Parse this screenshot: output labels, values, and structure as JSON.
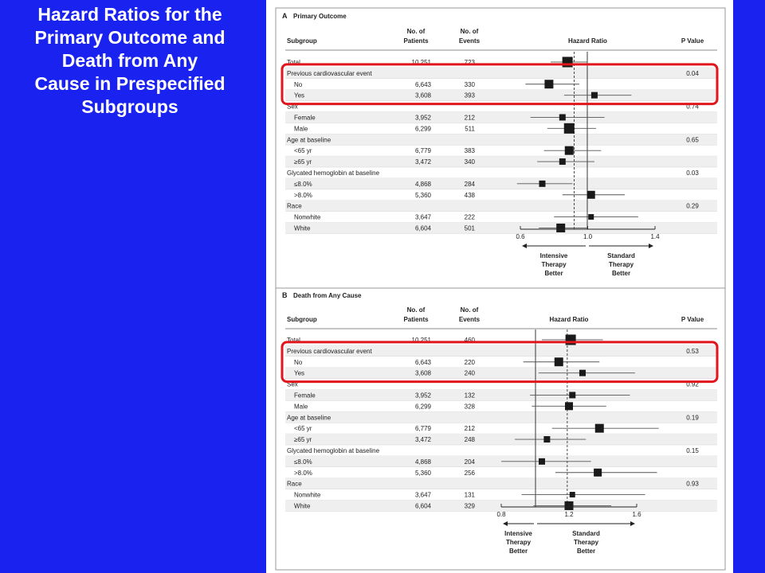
{
  "slide": {
    "title_lines": [
      "Hazard Ratios for the",
      "Primary Outcome and",
      "Death from Any",
      "Cause in Prespecified",
      "Subgroups"
    ]
  },
  "colors": {
    "background": "#1a22f0",
    "highlight_box": "#e0161c",
    "marker": "#1a1a1a",
    "row_shade": "#efefef"
  },
  "chart_data": [
    {
      "type": "forest",
      "panel_label": "A",
      "title": "Primary Outcome",
      "columns": {
        "subgroup": "Subgroup",
        "patients": "No. of Patients",
        "events": "No. of Events",
        "hr": "Hazard Ratio",
        "p": "P Value"
      },
      "xlim": [
        0.6,
        1.4
      ],
      "ticks": [
        "0.6",
        "1.0",
        "1.4"
      ],
      "dashed_reference": 0.92,
      "left_label": [
        "Intensive",
        "Therapy",
        "Better"
      ],
      "right_label": [
        "Standard",
        "Therapy",
        "Better"
      ],
      "highlight_group": "Previous cardiovascular event",
      "rows": [
        {
          "label": "Total",
          "indent": false,
          "patients": "10,251",
          "events": "723",
          "hr": 0.88,
          "lo": 0.78,
          "hi": 1.0,
          "size": 13
        },
        {
          "label": "Previous cardiovascular event",
          "indent": false,
          "p": "0.04"
        },
        {
          "label": "No",
          "indent": true,
          "patients": "6,643",
          "events": "330",
          "hr": 0.77,
          "lo": 0.63,
          "hi": 0.95,
          "size": 11
        },
        {
          "label": "Yes",
          "indent": true,
          "patients": "3,608",
          "events": "393",
          "hr": 1.04,
          "lo": 0.86,
          "hi": 1.26,
          "size": 8
        },
        {
          "label": "Sex",
          "indent": false,
          "p": "0.74"
        },
        {
          "label": "Female",
          "indent": true,
          "patients": "3,952",
          "events": "212",
          "hr": 0.85,
          "lo": 0.66,
          "hi": 1.1,
          "size": 8
        },
        {
          "label": "Male",
          "indent": true,
          "patients": "6,299",
          "events": "511",
          "hr": 0.89,
          "lo": 0.76,
          "hi": 1.05,
          "size": 13
        },
        {
          "label": "Age at baseline",
          "indent": false,
          "p": "0.65"
        },
        {
          "label": "<65 yr",
          "indent": true,
          "patients": "6,779",
          "events": "383",
          "hr": 0.89,
          "lo": 0.74,
          "hi": 1.08,
          "size": 11
        },
        {
          "label": "≥65 yr",
          "indent": true,
          "patients": "3,472",
          "events": "340",
          "hr": 0.85,
          "lo": 0.7,
          "hi": 1.04,
          "size": 8
        },
        {
          "label": "Glycated hemoglobin at baseline",
          "indent": false,
          "p": "0.03"
        },
        {
          "label": "≤8.0%",
          "indent": true,
          "patients": "4,868",
          "events": "284",
          "hr": 0.73,
          "lo": 0.58,
          "hi": 0.91,
          "size": 8
        },
        {
          "label": ">8.0%",
          "indent": true,
          "patients": "5,360",
          "events": "438",
          "hr": 1.02,
          "lo": 0.85,
          "hi": 1.22,
          "size": 10
        },
        {
          "label": "Race",
          "indent": false,
          "p": "0.29"
        },
        {
          "label": "Nonwhite",
          "indent": true,
          "patients": "3,647",
          "events": "222",
          "hr": 1.02,
          "lo": 0.8,
          "hi": 1.3,
          "size": 7
        },
        {
          "label": "White",
          "indent": true,
          "patients": "6,604",
          "events": "501",
          "hr": 0.84,
          "lo": 0.71,
          "hi": 1.0,
          "size": 11
        }
      ]
    },
    {
      "type": "forest",
      "panel_label": "B",
      "title": "Death from Any Cause",
      "columns": {
        "subgroup": "Subgroup",
        "patients": "No. of Patients",
        "events": "No. of Events",
        "hr": "Hazard Ratio",
        "p": "P Value"
      },
      "xlim": [
        0.8,
        1.6
      ],
      "ticks": [
        "0.8",
        "1.2",
        "1.6"
      ],
      "dashed_reference": 1.19,
      "left_label": [
        "Intensive",
        "Therapy",
        "Better"
      ],
      "right_label": [
        "Standard",
        "Therapy",
        "Better"
      ],
      "highlight_group": "Previous cardiovascular event",
      "rows": [
        {
          "label": "Total",
          "indent": false,
          "patients": "10,251",
          "events": "460",
          "hr": 1.21,
          "lo": 1.04,
          "hi": 1.4,
          "size": 13
        },
        {
          "label": "Previous cardiovascular event",
          "indent": false,
          "p": "0.53"
        },
        {
          "label": "No",
          "indent": true,
          "patients": "6,643",
          "events": "220",
          "hr": 1.14,
          "lo": 0.93,
          "hi": 1.38,
          "size": 11
        },
        {
          "label": "Yes",
          "indent": true,
          "patients": "3,608",
          "events": "240",
          "hr": 1.28,
          "lo": 1.02,
          "hi": 1.59,
          "size": 8
        },
        {
          "label": "Sex",
          "indent": false,
          "p": "0.92"
        },
        {
          "label": "Female",
          "indent": true,
          "patients": "3,952",
          "events": "132",
          "hr": 1.22,
          "lo": 0.97,
          "hi": 1.56,
          "size": 8
        },
        {
          "label": "Male",
          "indent": true,
          "patients": "6,299",
          "events": "328",
          "hr": 1.2,
          "lo": 0.98,
          "hi": 1.42,
          "size": 10
        },
        {
          "label": "Age at baseline",
          "indent": false,
          "p": "0.19"
        },
        {
          "label": "<65 yr",
          "indent": true,
          "patients": "6,779",
          "events": "212",
          "hr": 1.38,
          "lo": 1.1,
          "hi": 1.73,
          "size": 11
        },
        {
          "label": "≥65 yr",
          "indent": true,
          "patients": "3,472",
          "events": "248",
          "hr": 1.07,
          "lo": 0.88,
          "hi": 1.3,
          "size": 8
        },
        {
          "label": "Glycated hemoglobin at baseline",
          "indent": false,
          "p": "0.15"
        },
        {
          "label": "≤8.0%",
          "indent": true,
          "patients": "4,868",
          "events": "204",
          "hr": 1.04,
          "lo": 0.8,
          "hi": 1.33,
          "size": 8
        },
        {
          "label": ">8.0%",
          "indent": true,
          "patients": "5,360",
          "events": "256",
          "hr": 1.37,
          "lo": 1.12,
          "hi": 1.72,
          "size": 10
        },
        {
          "label": "Race",
          "indent": false,
          "p": "0.93"
        },
        {
          "label": "Nonwhite",
          "indent": true,
          "patients": "3,647",
          "events": "131",
          "hr": 1.22,
          "lo": 0.92,
          "hi": 1.65,
          "size": 7
        },
        {
          "label": "White",
          "indent": true,
          "patients": "6,604",
          "events": "329",
          "hr": 1.2,
          "lo": 0.99,
          "hi": 1.45,
          "size": 11
        }
      ]
    }
  ]
}
